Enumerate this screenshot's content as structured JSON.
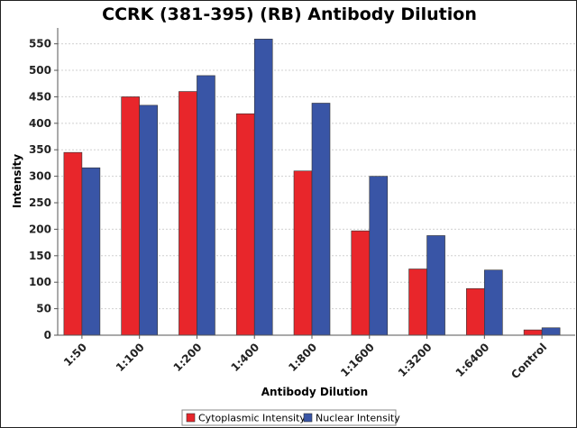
{
  "chart_data": {
    "type": "bar",
    "title": "CCRK (381-395) (RB) Antibody Dilution",
    "xlabel": "Antibody Dilution",
    "ylabel": "Intensity",
    "categories": [
      "1:50",
      "1:100",
      "1:200",
      "1:400",
      "1:800",
      "1:1600",
      "1:3200",
      "1:6400",
      "Control"
    ],
    "series": [
      {
        "name": "Cytoplasmic Intensity",
        "color": "#e8262b",
        "values": [
          345,
          450,
          460,
          418,
          310,
          197,
          125,
          88,
          10
        ]
      },
      {
        "name": "Nuclear Intensity",
        "color": "#3955a6",
        "values": [
          316,
          434,
          490,
          559,
          438,
          300,
          188,
          123,
          14
        ]
      }
    ],
    "ylim": [
      0,
      580
    ],
    "yticks": [
      0,
      50,
      100,
      150,
      200,
      250,
      300,
      350,
      400,
      450,
      500,
      550
    ],
    "grid": true,
    "legend_position": "bottom-center"
  }
}
